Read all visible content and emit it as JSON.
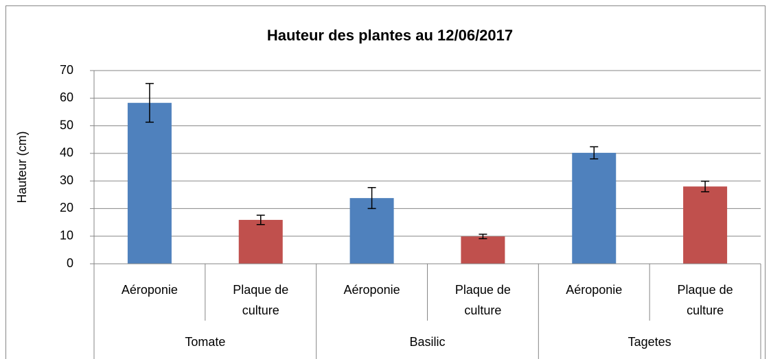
{
  "chart_data": {
    "type": "bar",
    "title": "Hauteur des plantes au 12/06/2017",
    "y_label": "Hauteur (cm)",
    "colors": [
      "#4f81bd",
      "#c0504d"
    ],
    "groups": [
      {
        "name": "Tomate",
        "categories": [
          "Aéroponie",
          "Plaque de culture"
        ],
        "values": [
          58.3,
          15.9
        ],
        "errors": [
          7,
          1.7
        ]
      },
      {
        "name": "Basilic",
        "categories": [
          "Aéroponie",
          "Plaque de culture"
        ],
        "values": [
          23.8,
          9.9
        ],
        "errors": [
          3.8,
          0.8
        ]
      },
      {
        "name": "Tagetes",
        "categories": [
          "Aéroponie",
          "Plaque de culture"
        ],
        "values": [
          40.2,
          28
        ],
        "errors": [
          2.2,
          1.9
        ]
      }
    ],
    "ylim": [
      0,
      70
    ],
    "yticks": [
      0,
      10,
      20,
      30,
      40,
      50,
      60,
      70
    ],
    "grid": true
  }
}
